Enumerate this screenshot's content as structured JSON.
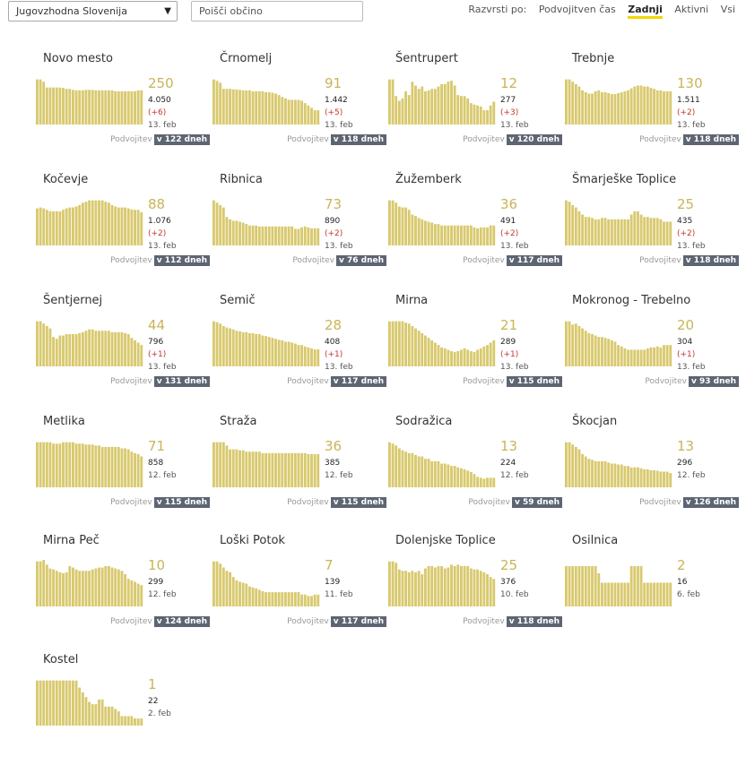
{
  "filters": {
    "region": "Jugovzhodna Slovenija",
    "search_placeholder": "Poišči občino"
  },
  "sort": {
    "label": "Razvrsti po:",
    "options": [
      "Podvojitven čas",
      "Zadnji",
      "Aktivni",
      "Vsi"
    ],
    "active": "Zadnji"
  },
  "bar_color": "#d8c96e",
  "footer_label": "Podvojitev",
  "municipalities": [
    {
      "name": "Novo mesto",
      "main": "250",
      "total": "4.050",
      "delta": "(+6)",
      "date": "13. feb",
      "doubling": "v 122 dneh",
      "bars": [
        0.95,
        0.95,
        0.9,
        0.78,
        0.78,
        0.78,
        0.78,
        0.78,
        0.77,
        0.75,
        0.75,
        0.73,
        0.72,
        0.72,
        0.72,
        0.73,
        0.73,
        0.73,
        0.72,
        0.72,
        0.72,
        0.72,
        0.72,
        0.72,
        0.7,
        0.7,
        0.7,
        0.7,
        0.7,
        0.7,
        0.7,
        0.72,
        0.72
      ]
    },
    {
      "name": "Črnomelj",
      "main": "91",
      "total": "1.442",
      "delta": "(+5)",
      "date": "13. feb",
      "doubling": "v 118 dneh",
      "bars": [
        0.95,
        0.92,
        0.88,
        0.75,
        0.75,
        0.75,
        0.74,
        0.74,
        0.73,
        0.72,
        0.72,
        0.72,
        0.7,
        0.7,
        0.7,
        0.7,
        0.68,
        0.68,
        0.67,
        0.65,
        0.62,
        0.58,
        0.55,
        0.52,
        0.52,
        0.52,
        0.52,
        0.5,
        0.45,
        0.4,
        0.35,
        0.3,
        0.3
      ]
    },
    {
      "name": "Šentrupert",
      "main": "12",
      "total": "277",
      "delta": "(+3)",
      "date": "13. feb",
      "doubling": "v 120 dneh",
      "bars": [
        0.95,
        0.95,
        0.6,
        0.5,
        0.55,
        0.7,
        0.62,
        0.9,
        0.82,
        0.75,
        0.8,
        0.7,
        0.72,
        0.75,
        0.75,
        0.8,
        0.85,
        0.85,
        0.9,
        0.92,
        0.82,
        0.62,
        0.6,
        0.6,
        0.55,
        0.45,
        0.42,
        0.4,
        0.38,
        0.3,
        0.3,
        0.4,
        0.48
      ]
    },
    {
      "name": "Trebnje",
      "main": "130",
      "total": "1.511",
      "delta": "(+2)",
      "date": "13. feb",
      "doubling": "v 118 dneh",
      "bars": [
        0.95,
        0.95,
        0.9,
        0.85,
        0.8,
        0.72,
        0.68,
        0.65,
        0.65,
        0.7,
        0.72,
        0.68,
        0.68,
        0.66,
        0.64,
        0.64,
        0.66,
        0.68,
        0.7,
        0.72,
        0.76,
        0.8,
        0.82,
        0.82,
        0.8,
        0.8,
        0.77,
        0.75,
        0.72,
        0.72,
        0.7,
        0.7,
        0.7
      ]
    },
    {
      "name": "Kočevje",
      "main": "88",
      "total": "1.076",
      "delta": "(+2)",
      "date": "13. feb",
      "doubling": "v 112 dneh",
      "bars": [
        0.78,
        0.8,
        0.78,
        0.75,
        0.72,
        0.72,
        0.72,
        0.72,
        0.75,
        0.78,
        0.8,
        0.8,
        0.82,
        0.85,
        0.9,
        0.92,
        0.95,
        0.95,
        0.95,
        0.95,
        0.95,
        0.92,
        0.9,
        0.85,
        0.82,
        0.8,
        0.8,
        0.8,
        0.78,
        0.76,
        0.75,
        0.75,
        0.7
      ]
    },
    {
      "name": "Ribnica",
      "main": "73",
      "total": "890",
      "delta": "(+2)",
      "date": "13. feb",
      "doubling": "v 76 dneh",
      "bars": [
        0.95,
        0.9,
        0.85,
        0.8,
        0.6,
        0.55,
        0.52,
        0.52,
        0.5,
        0.48,
        0.45,
        0.42,
        0.42,
        0.42,
        0.4,
        0.4,
        0.4,
        0.4,
        0.4,
        0.4,
        0.4,
        0.4,
        0.4,
        0.4,
        0.4,
        0.35,
        0.35,
        0.38,
        0.4,
        0.38,
        0.36,
        0.36,
        0.36
      ]
    },
    {
      "name": "Žužemberk",
      "main": "36",
      "total": "491",
      "delta": "(+2)",
      "date": "13. feb",
      "doubling": "v 117 dneh",
      "bars": [
        0.95,
        0.95,
        0.9,
        0.82,
        0.8,
        0.8,
        0.75,
        0.65,
        0.62,
        0.58,
        0.55,
        0.52,
        0.5,
        0.48,
        0.45,
        0.45,
        0.42,
        0.42,
        0.42,
        0.42,
        0.42,
        0.42,
        0.42,
        0.42,
        0.42,
        0.42,
        0.38,
        0.36,
        0.38,
        0.38,
        0.38,
        0.42,
        0.42
      ]
    },
    {
      "name": "Šmarješke Toplice",
      "main": "25",
      "total": "435",
      "delta": "(+2)",
      "date": "13. feb",
      "doubling": "v 118 dneh",
      "bars": [
        0.95,
        0.92,
        0.85,
        0.8,
        0.72,
        0.65,
        0.6,
        0.6,
        0.58,
        0.55,
        0.55,
        0.58,
        0.58,
        0.55,
        0.55,
        0.55,
        0.55,
        0.55,
        0.55,
        0.55,
        0.65,
        0.72,
        0.72,
        0.65,
        0.6,
        0.6,
        0.58,
        0.58,
        0.58,
        0.55,
        0.5,
        0.5,
        0.5
      ]
    },
    {
      "name": "Šentjernej",
      "main": "44",
      "total": "796",
      "delta": "(+1)",
      "date": "13. feb",
      "doubling": "v 131 dneh",
      "bars": [
        0.95,
        0.95,
        0.9,
        0.85,
        0.8,
        0.62,
        0.58,
        0.65,
        0.65,
        0.68,
        0.68,
        0.68,
        0.68,
        0.7,
        0.72,
        0.75,
        0.78,
        0.78,
        0.75,
        0.75,
        0.75,
        0.75,
        0.75,
        0.72,
        0.72,
        0.72,
        0.72,
        0.7,
        0.68,
        0.6,
        0.55,
        0.5,
        0.45
      ]
    },
    {
      "name": "Semič",
      "main": "28",
      "total": "408",
      "delta": "(+1)",
      "date": "13. feb",
      "doubling": "v 117 dneh",
      "bars": [
        0.95,
        0.93,
        0.9,
        0.85,
        0.82,
        0.8,
        0.78,
        0.75,
        0.74,
        0.72,
        0.72,
        0.7,
        0.7,
        0.68,
        0.68,
        0.65,
        0.64,
        0.62,
        0.6,
        0.58,
        0.56,
        0.55,
        0.52,
        0.52,
        0.5,
        0.48,
        0.45,
        0.45,
        0.42,
        0.4,
        0.38,
        0.36,
        0.36
      ]
    },
    {
      "name": "Mirna",
      "main": "21",
      "total": "289",
      "delta": "(+1)",
      "date": "13. feb",
      "doubling": "v 115 dneh",
      "bars": [
        0.95,
        0.95,
        0.95,
        0.95,
        0.95,
        0.92,
        0.9,
        0.85,
        0.8,
        0.75,
        0.7,
        0.65,
        0.6,
        0.55,
        0.5,
        0.45,
        0.4,
        0.38,
        0.35,
        0.32,
        0.3,
        0.32,
        0.35,
        0.38,
        0.35,
        0.32,
        0.3,
        0.35,
        0.38,
        0.42,
        0.45,
        0.5,
        0.55
      ]
    },
    {
      "name": "Mokronog - Trebelno",
      "main": "20",
      "total": "304",
      "delta": "(+1)",
      "date": "13. feb",
      "doubling": "v 93 dneh",
      "bars": [
        0.95,
        0.95,
        0.88,
        0.9,
        0.85,
        0.8,
        0.75,
        0.7,
        0.68,
        0.65,
        0.62,
        0.62,
        0.6,
        0.58,
        0.55,
        0.52,
        0.45,
        0.42,
        0.38,
        0.35,
        0.35,
        0.35,
        0.35,
        0.35,
        0.35,
        0.38,
        0.4,
        0.4,
        0.42,
        0.4,
        0.45,
        0.45,
        0.45
      ]
    },
    {
      "name": "Metlika",
      "main": "71",
      "total": "858",
      "delta": "",
      "date": "12. feb",
      "doubling": "v 115 dneh",
      "bars": [
        0.95,
        0.95,
        0.95,
        0.95,
        0.95,
        0.92,
        0.92,
        0.92,
        0.95,
        0.95,
        0.95,
        0.95,
        0.92,
        0.92,
        0.92,
        0.9,
        0.9,
        0.9,
        0.88,
        0.88,
        0.85,
        0.85,
        0.85,
        0.85,
        0.85,
        0.85,
        0.82,
        0.82,
        0.8,
        0.75,
        0.72,
        0.7,
        0.65
      ]
    },
    {
      "name": "Straža",
      "main": "36",
      "total": "385",
      "delta": "",
      "date": "12. feb",
      "doubling": "v 115 dneh",
      "bars": [
        0.95,
        0.95,
        0.95,
        0.95,
        0.88,
        0.8,
        0.8,
        0.8,
        0.78,
        0.78,
        0.75,
        0.75,
        0.75,
        0.75,
        0.75,
        0.72,
        0.72,
        0.72,
        0.72,
        0.72,
        0.72,
        0.72,
        0.72,
        0.72,
        0.72,
        0.72,
        0.72,
        0.72,
        0.72,
        0.7,
        0.7,
        0.7,
        0.7
      ]
    },
    {
      "name": "Sodražica",
      "main": "13",
      "total": "224",
      "delta": "",
      "date": "12. feb",
      "doubling": "v 59 dneh",
      "bars": [
        0.95,
        0.92,
        0.88,
        0.82,
        0.78,
        0.75,
        0.72,
        0.72,
        0.68,
        0.65,
        0.65,
        0.6,
        0.6,
        0.55,
        0.55,
        0.55,
        0.5,
        0.5,
        0.48,
        0.45,
        0.45,
        0.42,
        0.4,
        0.38,
        0.35,
        0.32,
        0.28,
        0.22,
        0.2,
        0.18,
        0.2,
        0.2,
        0.2
      ]
    },
    {
      "name": "Škocjan",
      "main": "13",
      "total": "296",
      "delta": "",
      "date": "12. feb",
      "doubling": "v 126 dneh",
      "bars": [
        0.95,
        0.95,
        0.9,
        0.85,
        0.8,
        0.7,
        0.65,
        0.6,
        0.58,
        0.55,
        0.55,
        0.55,
        0.55,
        0.52,
        0.5,
        0.5,
        0.48,
        0.48,
        0.45,
        0.45,
        0.42,
        0.42,
        0.42,
        0.4,
        0.38,
        0.38,
        0.36,
        0.36,
        0.35,
        0.33,
        0.33,
        0.33,
        0.3
      ]
    },
    {
      "name": "Mirna Peč",
      "main": "10",
      "total": "299",
      "delta": "",
      "date": "12. feb",
      "doubling": "v 124 dneh",
      "bars": [
        0.95,
        0.95,
        0.98,
        0.88,
        0.8,
        0.78,
        0.75,
        0.72,
        0.7,
        0.72,
        0.85,
        0.82,
        0.78,
        0.75,
        0.75,
        0.75,
        0.75,
        0.78,
        0.8,
        0.82,
        0.82,
        0.85,
        0.85,
        0.82,
        0.8,
        0.78,
        0.75,
        0.68,
        0.58,
        0.55,
        0.52,
        0.48,
        0.45
      ]
    },
    {
      "name": "Loški Potok",
      "main": "7",
      "total": "139",
      "delta": "",
      "date": "11. feb",
      "doubling": "v 117 dneh",
      "bars": [
        0.95,
        0.95,
        0.9,
        0.82,
        0.75,
        0.72,
        0.62,
        0.55,
        0.52,
        0.5,
        0.48,
        0.42,
        0.4,
        0.38,
        0.35,
        0.32,
        0.3,
        0.3,
        0.3,
        0.3,
        0.3,
        0.3,
        0.3,
        0.3,
        0.3,
        0.3,
        0.3,
        0.25,
        0.25,
        0.22,
        0.22,
        0.25,
        0.25
      ]
    },
    {
      "name": "Dolenjske Toplice",
      "main": "25",
      "total": "376",
      "delta": "",
      "date": "10. feb",
      "doubling": "v 118 dneh",
      "bars": [
        0.95,
        0.95,
        0.92,
        0.78,
        0.75,
        0.75,
        0.72,
        0.75,
        0.72,
        0.75,
        0.68,
        0.8,
        0.85,
        0.85,
        0.82,
        0.85,
        0.85,
        0.8,
        0.82,
        0.88,
        0.85,
        0.88,
        0.85,
        0.85,
        0.85,
        0.8,
        0.78,
        0.78,
        0.75,
        0.72,
        0.68,
        0.62,
        0.58
      ]
    },
    {
      "name": "Osilnica",
      "main": "2",
      "total": "16",
      "delta": "",
      "date": "6. feb",
      "doubling": "",
      "bars": [
        0.85,
        0.85,
        0.85,
        0.85,
        0.85,
        0.85,
        0.85,
        0.85,
        0.85,
        0.85,
        0.7,
        0.5,
        0.5,
        0.5,
        0.5,
        0.5,
        0.5,
        0.5,
        0.5,
        0.5,
        0.85,
        0.85,
        0.85,
        0.85,
        0.5,
        0.5,
        0.5,
        0.5,
        0.5,
        0.5,
        0.5,
        0.5,
        0.5
      ]
    },
    {
      "name": "Kostel",
      "main": "1",
      "total": "22",
      "delta": "",
      "date": "2. feb",
      "doubling": "",
      "bars": [
        0.95,
        0.95,
        0.95,
        0.95,
        0.95,
        0.95,
        0.95,
        0.95,
        0.95,
        0.95,
        0.95,
        0.95,
        0.95,
        0.8,
        0.7,
        0.6,
        0.5,
        0.45,
        0.45,
        0.55,
        0.55,
        0.4,
        0.4,
        0.4,
        0.35,
        0.3,
        0.2,
        0.2,
        0.2,
        0.2,
        0.15,
        0.15,
        0.15
      ]
    }
  ]
}
